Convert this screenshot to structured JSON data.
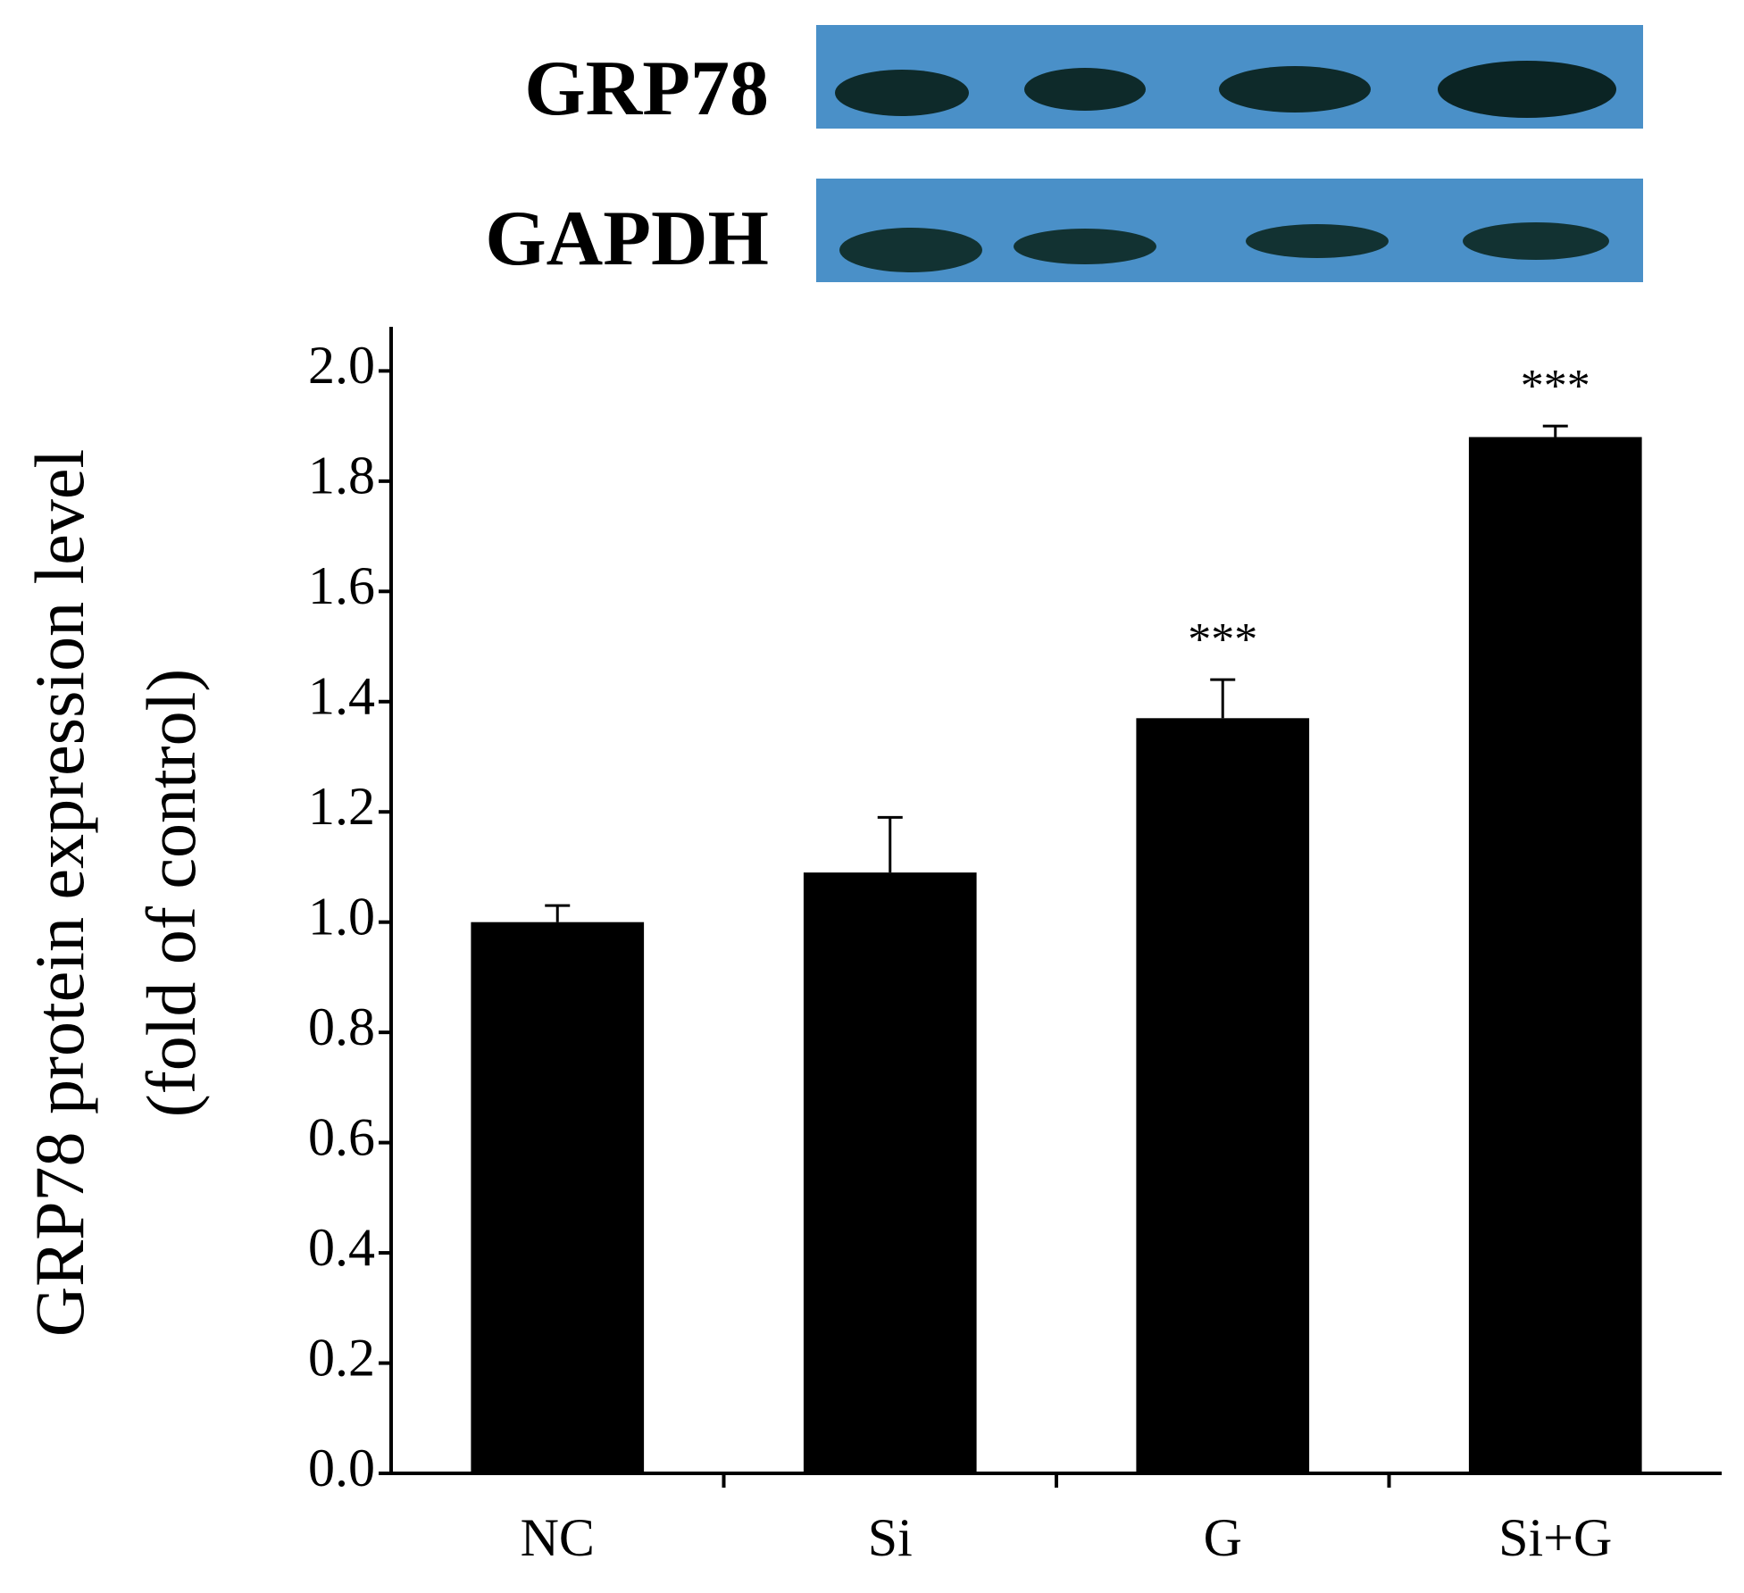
{
  "blot_labels": [
    "GRP78",
    "GAPDH"
  ],
  "chart_data": {
    "type": "bar",
    "y_label": [
      "GRP78 protein expression level",
      "(fold of control)"
    ],
    "categories": [
      "NC",
      "Si",
      "G",
      "Si+G"
    ],
    "values": [
      1.0,
      1.09,
      1.37,
      1.88
    ],
    "errors": [
      0.03,
      0.1,
      0.07,
      0.02
    ],
    "annotations": [
      null,
      null,
      "***",
      "***"
    ],
    "color": "#000000",
    "ylim": [
      0,
      2.08
    ],
    "yticks": [
      {
        "value": 0,
        "label": "0.0"
      },
      0.2,
      0.4,
      0.6,
      0.8,
      {
        "value": 1,
        "label": "1.0"
      },
      1.2,
      1.4,
      1.6,
      1.8,
      {
        "value": 2,
        "label": "2.0"
      }
    ],
    "grid": false
  }
}
